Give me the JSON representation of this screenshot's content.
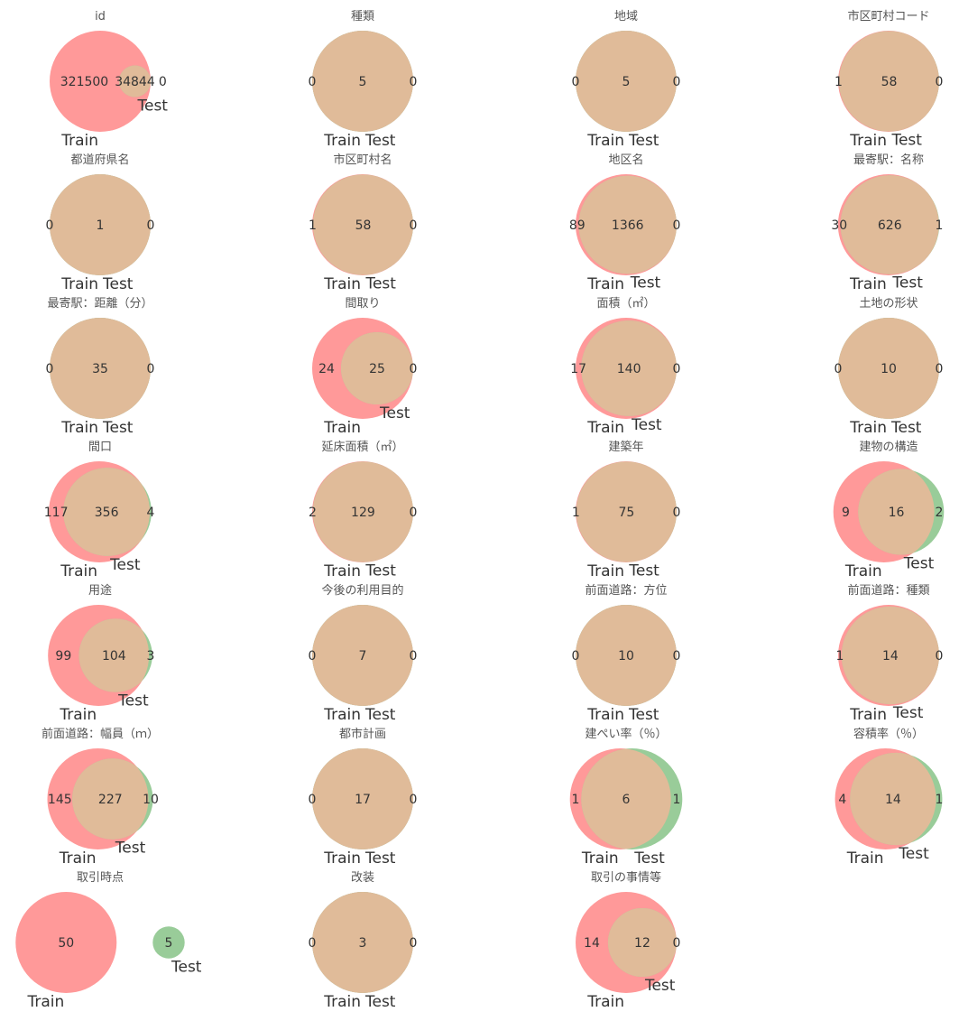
{
  "chart_data": {
    "type": "venn",
    "set_labels": [
      "Train",
      "Test"
    ],
    "colors": {
      "train": "#ff9999",
      "test": "#99cc99",
      "overlap": "#e0bb99"
    },
    "plots": [
      {
        "title": "id",
        "train_only": 321500,
        "both": 34844,
        "test_only": 0
      },
      {
        "title": "種類",
        "train_only": 0,
        "both": 5,
        "test_only": 0
      },
      {
        "title": "地域",
        "train_only": 0,
        "both": 5,
        "test_only": 0
      },
      {
        "title": "市区町村コード",
        "train_only": 1,
        "both": 58,
        "test_only": 0
      },
      {
        "title": "都道府県名",
        "train_only": 0,
        "both": 1,
        "test_only": 0
      },
      {
        "title": "市区町村名",
        "train_only": 1,
        "both": 58,
        "test_only": 0
      },
      {
        "title": "地区名",
        "train_only": 89,
        "both": 1366,
        "test_only": 0
      },
      {
        "title": "最寄駅：名称",
        "train_only": 30,
        "both": 626,
        "test_only": 1
      },
      {
        "title": "最寄駅：距離（分）",
        "train_only": 0,
        "both": 35,
        "test_only": 0
      },
      {
        "title": "間取り",
        "train_only": 24,
        "both": 25,
        "test_only": 0
      },
      {
        "title": "面積（㎡）",
        "train_only": 17,
        "both": 140,
        "test_only": 0
      },
      {
        "title": "土地の形状",
        "train_only": 0,
        "both": 10,
        "test_only": 0
      },
      {
        "title": "間口",
        "train_only": 117,
        "both": 356,
        "test_only": 4
      },
      {
        "title": "延床面積（㎡）",
        "train_only": 2,
        "both": 129,
        "test_only": 0
      },
      {
        "title": "建築年",
        "train_only": 1,
        "both": 75,
        "test_only": 0
      },
      {
        "title": "建物の構造",
        "train_only": 9,
        "both": 16,
        "test_only": 2
      },
      {
        "title": "用途",
        "train_only": 99,
        "both": 104,
        "test_only": 3
      },
      {
        "title": "今後の利用目的",
        "train_only": 0,
        "both": 7,
        "test_only": 0
      },
      {
        "title": "前面道路：方位",
        "train_only": 0,
        "both": 10,
        "test_only": 0
      },
      {
        "title": "前面道路：種類",
        "train_only": 1,
        "both": 14,
        "test_only": 0
      },
      {
        "title": "前面道路：幅員（ｍ）",
        "train_only": 145,
        "both": 227,
        "test_only": 10
      },
      {
        "title": "都市計画",
        "train_only": 0,
        "both": 17,
        "test_only": 0
      },
      {
        "title": "建ぺい率（％）",
        "train_only": 1,
        "both": 6,
        "test_only": 1
      },
      {
        "title": "容積率（％）",
        "train_only": 4,
        "both": 14,
        "test_only": 1
      },
      {
        "title": "取引時点",
        "train_only": 50,
        "both": null,
        "test_only": 5
      },
      {
        "title": "改装",
        "train_only": 0,
        "both": 3,
        "test_only": 0
      },
      {
        "title": "取引の事情等",
        "train_only": 14,
        "both": 12,
        "test_only": 0
      }
    ]
  }
}
